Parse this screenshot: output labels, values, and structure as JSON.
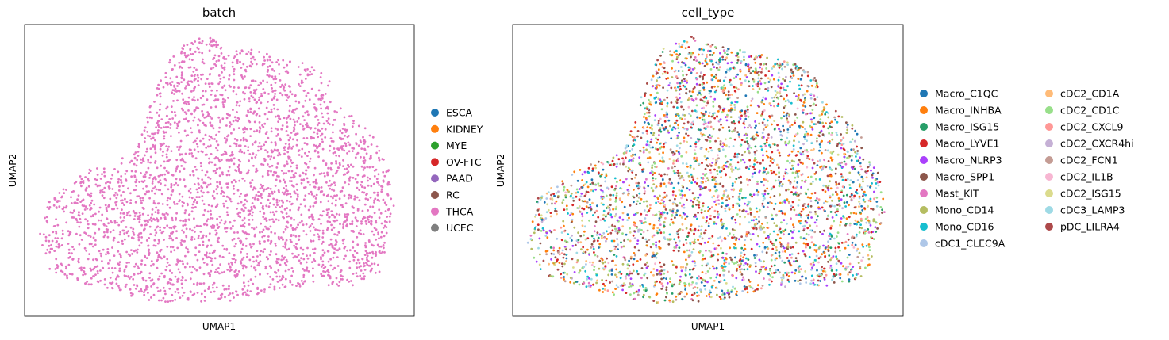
{
  "chart_data": [
    {
      "type": "scatter",
      "title": "batch",
      "xlabel": "UMAP1",
      "ylabel": "UMAP2",
      "x_ticks": "none",
      "y_ticks": "none",
      "grid": false,
      "legend_position": "right",
      "point_density": "dense",
      "legend": [
        {
          "label": "ESCA",
          "color": "#1f77b4"
        },
        {
          "label": "KIDNEY",
          "color": "#ff7f0e"
        },
        {
          "label": "MYE",
          "color": "#2ca02c"
        },
        {
          "label": "OV-FTC",
          "color": "#d62728"
        },
        {
          "label": "PAAD",
          "color": "#9467bd"
        },
        {
          "label": "RC",
          "color": "#8c564b"
        },
        {
          "label": "THCA",
          "color": "#e377c2"
        },
        {
          "label": "UCEC",
          "color": "#7f7f7f"
        }
      ],
      "visible_series": [
        "THCA"
      ]
    },
    {
      "type": "scatter",
      "title": "cell_type",
      "xlabel": "UMAP1",
      "ylabel": "UMAP2",
      "x_ticks": "none",
      "y_ticks": "none",
      "grid": false,
      "legend_position": "right",
      "legend_columns": 2,
      "point_density": "dense",
      "legend": [
        {
          "label": "Macro_C1QC",
          "color": "#1f77b4"
        },
        {
          "label": "Macro_INHBA",
          "color": "#ff7f0e"
        },
        {
          "label": "Macro_ISG15",
          "color": "#279e68"
        },
        {
          "label": "Macro_LYVE1",
          "color": "#d62728"
        },
        {
          "label": "Macro_NLRP3",
          "color": "#aa40fc"
        },
        {
          "label": "Macro_SPP1",
          "color": "#8c564b"
        },
        {
          "label": "Mast_KIT",
          "color": "#e377c2"
        },
        {
          "label": "Mono_CD14",
          "color": "#b5bd61"
        },
        {
          "label": "Mono_CD16",
          "color": "#17becf"
        },
        {
          "label": "cDC1_CLEC9A",
          "color": "#aec7e8"
        },
        {
          "label": "cDC2_CD1A",
          "color": "#ffbb78"
        },
        {
          "label": "cDC2_CD1C",
          "color": "#98df8a"
        },
        {
          "label": "cDC2_CXCL9",
          "color": "#ff9896"
        },
        {
          "label": "cDC2_CXCR4hi",
          "color": "#c5b0d5"
        },
        {
          "label": "cDC2_FCN1",
          "color": "#c49c94"
        },
        {
          "label": "cDC2_IL1B",
          "color": "#f7b6d2"
        },
        {
          "label": "cDC2_ISG15",
          "color": "#dbdb8d"
        },
        {
          "label": "cDC3_LAMP3",
          "color": "#9edae5"
        },
        {
          "label": "pDC_LILRA4",
          "color": "#ad494a"
        }
      ]
    }
  ]
}
